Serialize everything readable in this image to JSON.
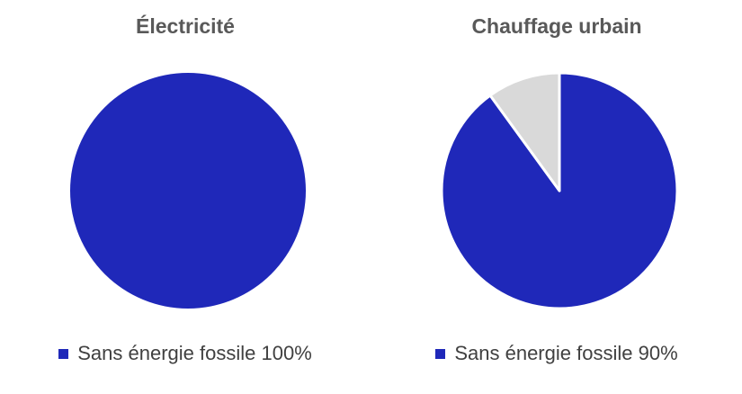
{
  "chart_data": [
    {
      "type": "pie",
      "title": "Électricité",
      "slices": [
        {
          "label": "Sans énergie fossile",
          "value": 100,
          "color": "#1f28b9"
        }
      ],
      "legend": [
        {
          "name": "Sans énergie fossile",
          "percent": "100%",
          "color": "#1f28b9"
        }
      ],
      "legend_placement": "bottom"
    },
    {
      "type": "pie",
      "title": "Chauffage urbain",
      "slices": [
        {
          "label": "Sans énergie fossile",
          "value": 90,
          "color": "#1f28b9"
        },
        {
          "label": "",
          "value": 10,
          "color": "#d9d9d9"
        }
      ],
      "legend": [
        {
          "name": "Sans énergie fossile",
          "percent": "90%",
          "color": "#1f28b9"
        }
      ],
      "legend_placement": "bottom"
    }
  ]
}
